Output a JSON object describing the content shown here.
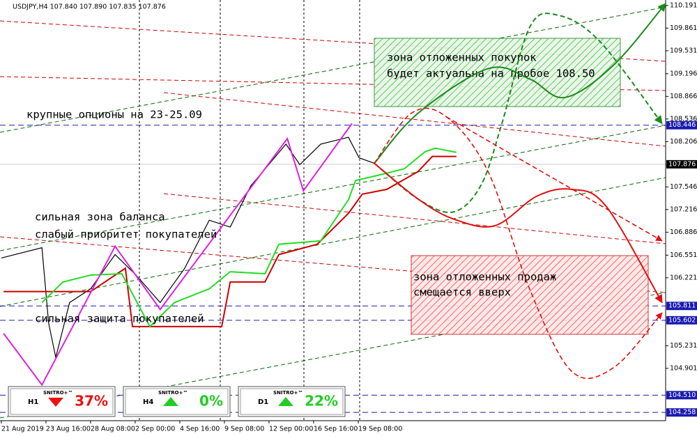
{
  "header": "USDJPY,H4  107.840 107.890 107.835 107.876",
  "annotations": {
    "options": "крупные опционы на 23-25.09",
    "balance": "сильная зона баланса",
    "priority": "слабый приоритет покупателей",
    "defense": "сильная защита покупателей",
    "buy_zone_1": "зона отложенных покупок",
    "buy_zone_2": "будет актуальна на пробое 108.50",
    "sell_zone_1": "зона отложенных продаж",
    "sell_zone_2": "смещается вверх"
  },
  "widgets": [
    {
      "timeframe": "H1",
      "brand": "SNITRO+™",
      "direction": "down",
      "value": "37%"
    },
    {
      "timeframe": "H4",
      "brand": "SNITRO+™",
      "direction": "up",
      "value": "0%"
    },
    {
      "timeframe": "D1",
      "brand": "SNITRO+™",
      "direction": "up",
      "value": "22%"
    }
  ],
  "chart_data": {
    "type": "line",
    "xlim": [
      -0.03,
      14.89
    ],
    "ylim": [
      104.138,
      110.271
    ],
    "xticks": [
      {
        "value": 0,
        "label": "21 Aug 2019"
      },
      {
        "value": 1,
        "label": "23 Aug 16:00"
      },
      {
        "value": 2,
        "label": "28 Aug 08:00"
      },
      {
        "value": 3,
        "label": "2 Sep 00:00"
      },
      {
        "value": 4,
        "label": "4 Sep 16:00"
      },
      {
        "value": 5,
        "label": "9 Sep 08:00"
      },
      {
        "value": 6,
        "label": "12 Sep 00:00"
      },
      {
        "value": 7,
        "label": "16 Sep 16:00"
      },
      {
        "value": 8,
        "label": "19 Sep 08:00"
      }
    ],
    "yticks": [
      110.191,
      109.861,
      109.531,
      109.196,
      108.866,
      108.536,
      108.206,
      107.546,
      107.216,
      106.886,
      106.551,
      106.221,
      105.231,
      104.901
    ],
    "price_line": {
      "value": 107.876,
      "color": "#000000"
    },
    "levels": [
      {
        "value": 108.446,
        "label": "108.446"
      },
      {
        "value": 105.811,
        "label": "105.811"
      },
      {
        "value": 105.602,
        "label": "105.602"
      },
      {
        "value": 104.51,
        "label": "104.510"
      },
      {
        "value": 104.258,
        "label": "104.258"
      }
    ],
    "level_color": "#1a1ab0",
    "series": [
      {
        "color": "#000000",
        "dash": false,
        "smooth": false,
        "arrow": false,
        "width": 1.2,
        "x": [
          0,
          0.91,
          1.06,
          1.22,
          1.53,
          2.0,
          2.55,
          3.02,
          3.56,
          4.11,
          4.66,
          5.13,
          5.59,
          6.38,
          6.69,
          7.16,
          7.78,
          8.02,
          8.36
        ],
        "values": [
          106.51,
          106.66,
          105.56,
          105.06,
          105.86,
          106.06,
          106.56,
          106.26,
          105.86,
          106.36,
          107.06,
          106.96,
          107.56,
          108.17,
          107.87,
          108.17,
          108.27,
          107.97,
          107.89
        ]
      },
      {
        "color": "#cc0000",
        "dash": false,
        "smooth": false,
        "arrow": false,
        "width": 2,
        "x": [
          0.05,
          2.0,
          2.78,
          2.94,
          4.94,
          5.13,
          5.91,
          6.22,
          7.08,
          7.78,
          8.09,
          8.64,
          9.34,
          9.66,
          10.2
        ],
        "values": [
          106.02,
          106.02,
          106.36,
          105.51,
          105.51,
          106.16,
          106.16,
          106.56,
          106.71,
          107.16,
          107.44,
          107.51,
          107.77,
          107.99,
          107.99
        ]
      },
      {
        "color": "#22dd22",
        "dash": false,
        "smooth": false,
        "arrow": false,
        "width": 2,
        "x": [
          0.91,
          1.38,
          2.0,
          2.7,
          3.33,
          3.88,
          4.66,
          5.13,
          5.91,
          6.22,
          7.16,
          7.78,
          7.94,
          8.41,
          9.03,
          9.5,
          9.73,
          10.2
        ],
        "values": [
          105.86,
          106.16,
          106.26,
          106.28,
          105.51,
          105.86,
          106.06,
          106.31,
          106.28,
          106.71,
          106.76,
          107.36,
          107.64,
          107.71,
          107.81,
          108.06,
          108.11,
          108.05
        ]
      },
      {
        "color": "#dd22dd",
        "dash": false,
        "smooth": false,
        "arrow": false,
        "width": 2,
        "x": [
          0.05,
          0.91,
          2.55,
          3.56,
          6.41,
          6.77,
          7.86
        ],
        "values": [
          105.41,
          104.66,
          106.68,
          105.76,
          108.25,
          107.49,
          108.47
        ]
      },
      {
        "color": "#1a8a1a",
        "dash": false,
        "smooth": true,
        "arrow": true,
        "width": 2,
        "x": [
          8.36,
          9.34,
          10.91,
          11.84,
          12.63,
          13.72,
          14.89
        ],
        "values": [
          107.89,
          108.62,
          109.27,
          109.12,
          108.85,
          109.32,
          110.22
        ]
      },
      {
        "color": "#1a8a1a",
        "dash": true,
        "smooth": true,
        "arrow": true,
        "width": 2,
        "x": [
          8.36,
          9.34,
          10.13,
          10.75,
          11.22,
          11.84,
          12.47,
          13.41,
          14.81
        ],
        "values": [
          107.89,
          107.37,
          107.18,
          107.57,
          108.47,
          109.87,
          110.05,
          109.67,
          108.47
        ]
      },
      {
        "color": "#e01010",
        "dash": false,
        "smooth": true,
        "arrow": true,
        "width": 2,
        "x": [
          8.36,
          9.34,
          10.13,
          11.06,
          12.0,
          12.78,
          13.56,
          14.81
        ],
        "values": [
          107.89,
          107.37,
          107.08,
          106.98,
          107.41,
          107.51,
          107.26,
          105.86
        ]
      },
      {
        "color": "#e01010",
        "dash": true,
        "smooth": true,
        "arrow": true,
        "width": 1.6,
        "x": [
          8.36,
          9.19,
          9.97,
          10.91,
          11.84,
          12.78,
          13.72,
          14.81
        ],
        "values": [
          107.89,
          108.62,
          108.57,
          107.77,
          106.06,
          104.86,
          104.91,
          105.71
        ]
      },
      {
        "color": "#e01010",
        "dash": true,
        "smooth": false,
        "arrow": true,
        "width": 1.6,
        "x": [
          9.97,
          14.81
        ],
        "values": [
          108.57,
          106.76
        ]
      }
    ]
  }
}
